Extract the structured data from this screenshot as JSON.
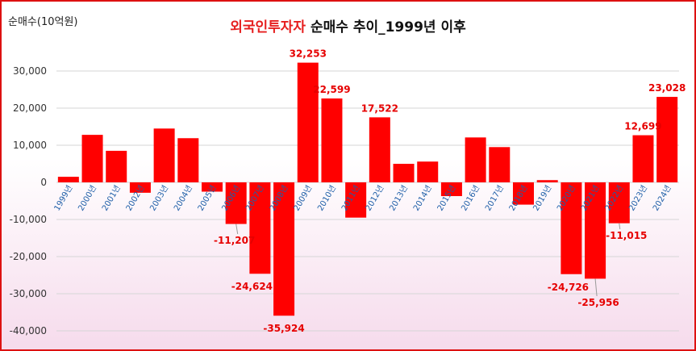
{
  "chart_data": {
    "type": "bar",
    "unit_label": "순매수(10억원)",
    "title_highlight": "외국인투자자",
    "title_rest": " 순매수 추이_1999년 이후",
    "categories": [
      "1999년",
      "2000년",
      "2001년",
      "2002년",
      "2003년",
      "2004년",
      "2005년",
      "2006년",
      "2007년",
      "2008년",
      "2009년",
      "2010년",
      "2011년",
      "2012년",
      "2013년",
      "2014년",
      "2015년",
      "2016년",
      "2017년",
      "2018년",
      "2019년",
      "2020년",
      "2021년",
      "2022년",
      "2023년",
      "2024년"
    ],
    "values": [
      1500,
      12800,
      8500,
      -2800,
      14500,
      11900,
      -2500,
      -11207,
      -24624,
      -35924,
      32253,
      22599,
      -9500,
      17522,
      5000,
      5600,
      -3700,
      12100,
      9500,
      -6000,
      600,
      -24726,
      -25956,
      -11015,
      12699,
      23028
    ],
    "data_labels": [
      {
        "index": 7,
        "text": "-11,207"
      },
      {
        "index": 8,
        "text": "-24,624"
      },
      {
        "index": 9,
        "text": "-35,924"
      },
      {
        "index": 10,
        "text": "32,253"
      },
      {
        "index": 11,
        "text": "22,599"
      },
      {
        "index": 13,
        "text": "17,522"
      },
      {
        "index": 21,
        "text": "-24,726"
      },
      {
        "index": 22,
        "text": "-25,956"
      },
      {
        "index": 23,
        "text": "-11,015"
      },
      {
        "index": 24,
        "text": "12,699"
      },
      {
        "index": 25,
        "text": "23,028"
      }
    ],
    "yticks": [
      30000,
      20000,
      10000,
      0,
      -10000,
      -20000,
      -30000,
      -40000
    ],
    "ytick_labels": [
      "30,000",
      "20,000",
      "10,000",
      "0",
      "-10,000",
      "-20,000",
      "-30,000",
      "-40,000"
    ],
    "ylim": [
      -40000,
      35000
    ],
    "bar_color": "#ff0000",
    "grid": true
  }
}
